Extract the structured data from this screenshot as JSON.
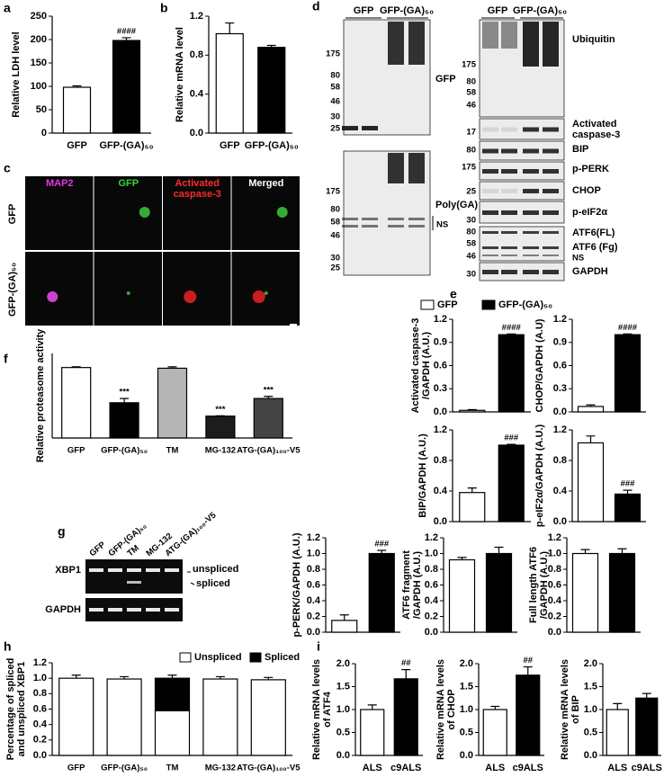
{
  "chart_data": [
    {
      "type": "bar",
      "ylabel": [
        "Relative LDH level"
      ],
      "categories": [
        "GFP",
        "GFP-(GA)₅₀"
      ],
      "values": [
        98,
        198
      ],
      "errors": [
        3,
        6
      ],
      "colors": [
        "#ffffff",
        "#000000"
      ],
      "annotations": [
        null,
        "####"
      ],
      "ylim": [
        0,
        250
      ],
      "yticks": [
        0,
        50,
        100,
        150,
        200,
        250
      ]
    },
    {
      "type": "bar",
      "ylabel": [
        "Relative mRNA level"
      ],
      "categories": [
        "GFP",
        "GFP-(GA)₅₀"
      ],
      "values": [
        1.02,
        0.88
      ],
      "errors": [
        0.11,
        0.02
      ],
      "colors": [
        "#ffffff",
        "#000000"
      ],
      "ylim": [
        0,
        1.2
      ],
      "yticks": [
        {
          "value": 0,
          "label": "0.0"
        },
        0.4,
        0.8,
        1.2
      ]
    },
    {
      "type": "bar",
      "ylabel": [
        "Activated caspase-3",
        "/GAPDH (A.U.)"
      ],
      "categories": [
        null,
        null
      ],
      "values": [
        0.02,
        1.0
      ],
      "errors": [
        0.01,
        0.01
      ],
      "colors": [
        "#ffffff",
        "#000000"
      ],
      "annotations": [
        null,
        "####"
      ],
      "ylim": [
        0,
        1.2
      ],
      "yticks": [
        {
          "value": 0,
          "label": "0.0"
        },
        0.3,
        0.6,
        0.9,
        1.2
      ]
    },
    {
      "type": "bar",
      "ylabel": [
        "CHOP/GAPDH (A.U)"
      ],
      "categories": [
        null,
        null
      ],
      "values": [
        0.07,
        1.0
      ],
      "errors": [
        0.02,
        0.01
      ],
      "colors": [
        "#ffffff",
        "#000000"
      ],
      "annotations": [
        null,
        "####"
      ],
      "ylim": [
        0,
        1.2
      ],
      "yticks": [
        {
          "value": 0,
          "label": "0.0"
        },
        0.3,
        0.6,
        0.9,
        1.2
      ]
    },
    {
      "type": "bar",
      "ylabel": [
        "BIP/GAPDH (A.U.)"
      ],
      "categories": [
        null,
        null
      ],
      "values": [
        0.38,
        1.0
      ],
      "errors": [
        0.06,
        0.01
      ],
      "colors": [
        "#ffffff",
        "#000000"
      ],
      "annotations": [
        null,
        "###"
      ],
      "ylim": [
        0,
        1.2
      ],
      "yticks": [
        {
          "value": 0,
          "label": "0.0"
        },
        0.4,
        0.8,
        1.2
      ]
    },
    {
      "type": "bar",
      "ylabel": [
        "p-eIF2α/GAPDH (A.U.)"
      ],
      "categories": [
        null,
        null
      ],
      "values": [
        1.03,
        0.36
      ],
      "errors": [
        0.09,
        0.05
      ],
      "colors": [
        "#ffffff",
        "#000000"
      ],
      "annotations": [
        null,
        "###"
      ],
      "ylim": [
        0,
        1.2
      ],
      "yticks": [
        {
          "value": 0,
          "label": "0.0"
        },
        0.4,
        0.8,
        1.2
      ]
    },
    {
      "type": "bar",
      "ylabel": [
        "p-PERK/GAPDH (A.U.)"
      ],
      "categories": [
        null,
        null
      ],
      "values": [
        0.15,
        1.0
      ],
      "errors": [
        0.07,
        0.04
      ],
      "colors": [
        "#ffffff",
        "#000000"
      ],
      "annotations": [
        null,
        "###"
      ],
      "ylim": [
        0,
        1.2
      ],
      "yticks": [
        {
          "value": 0,
          "label": "0.0"
        },
        0.2,
        0.4,
        0.6,
        0.8,
        {
          "value": 1,
          "label": "1.0"
        },
        1.2
      ]
    },
    {
      "type": "bar",
      "ylabel": [
        "ATF6 fragment",
        "/GAPDH (A.U.)"
      ],
      "categories": [
        null,
        null
      ],
      "values": [
        0.92,
        1.0
      ],
      "errors": [
        0.03,
        0.08
      ],
      "colors": [
        "#ffffff",
        "#000000"
      ],
      "ylim": [
        0,
        1.2
      ],
      "yticks": [
        {
          "value": 0,
          "label": "0.0"
        },
        0.2,
        0.4,
        0.6,
        0.8,
        {
          "value": 1,
          "label": "1.0"
        },
        1.2
      ]
    },
    {
      "type": "bar",
      "ylabel": [
        "Full length ATF6",
        "/GAPDH (A.U.)"
      ],
      "categories": [
        null,
        null
      ],
      "values": [
        1.0,
        1.0
      ],
      "errors": [
        0.05,
        0.06
      ],
      "colors": [
        "#ffffff",
        "#000000"
      ],
      "ylim": [
        0,
        1.2
      ],
      "yticks": [
        {
          "value": 0,
          "label": "0.0"
        },
        0.2,
        0.4,
        0.6,
        0.8,
        {
          "value": 1,
          "label": "1.0"
        },
        1.2
      ]
    },
    {
      "type": "bar",
      "ylabel": [
        "Relative proteasome activity"
      ],
      "categories": [
        "GFP",
        "GFP-(GA)₅₀",
        "TM",
        "MG-132",
        "ATG-(GA)₁₀₀-V5"
      ],
      "values": [
        100,
        50,
        99,
        31,
        56
      ],
      "errors": [
        1,
        6,
        2,
        0.5,
        3
      ],
      "colors": [
        "#ffffff",
        "#000000",
        "#b5b5b5",
        "#1c1c1c",
        "#444444"
      ],
      "annotations": [
        null,
        "***",
        null,
        "***",
        "***"
      ],
      "ylim": [
        0,
        120
      ]
    },
    {
      "type": "stacked_bar",
      "ylabel": [
        "Percentage of spliced",
        "and unspliced XBP1"
      ],
      "categories": [
        "GFP",
        "GFP-(GA)₅₀",
        "TM",
        "MG-132",
        "ATG-(GA)₁₀₀-V5"
      ],
      "series": [
        {
          "name": "Unspliced",
          "color": "#ffffff",
          "values": [
            1.0,
            0.99,
            0.58,
            0.99,
            0.98
          ]
        },
        {
          "name": "Spliced",
          "color": "#000000",
          "values": [
            0,
            0,
            0.42,
            0,
            0
          ]
        }
      ],
      "errors": [
        0.04,
        0.03,
        0.04,
        0.03,
        0.03
      ],
      "ylim": [
        0,
        1.2
      ],
      "yticks": [
        {
          "value": 0,
          "label": "0.0"
        },
        0.2,
        0.4,
        0.6,
        0.8,
        {
          "value": 1,
          "label": "1.0"
        },
        1.2
      ]
    },
    {
      "type": "bar",
      "ylabel": [
        "Relative mRNA levels",
        "of ATF4"
      ],
      "categories": [
        "ALS",
        "c9ALS"
      ],
      "values": [
        1.0,
        1.67
      ],
      "errors": [
        0.1,
        0.2
      ],
      "colors": [
        "#ffffff",
        "#000000"
      ],
      "annotations": [
        null,
        "##"
      ],
      "ylim": [
        0,
        2
      ],
      "yticks": [
        {
          "value": 0,
          "label": "0.0"
        },
        0.5,
        {
          "value": 1,
          "label": "1.0"
        },
        1.5,
        {
          "value": 2,
          "label": "2.0"
        }
      ]
    },
    {
      "type": "bar",
      "ylabel": [
        "Relative mRNA levels",
        "of CHOP"
      ],
      "categories": [
        "ALS",
        "c9ALS"
      ],
      "values": [
        1.0,
        1.75
      ],
      "errors": [
        0.07,
        0.18
      ],
      "colors": [
        "#ffffff",
        "#000000"
      ],
      "annotations": [
        null,
        "##"
      ],
      "ylim": [
        0,
        2
      ],
      "yticks": [
        {
          "value": 0,
          "label": "0.0"
        },
        0.5,
        {
          "value": 1,
          "label": "1.0"
        },
        1.5,
        {
          "value": 2,
          "label": "2.0"
        }
      ]
    },
    {
      "type": "bar",
      "ylabel": [
        "Relative mRNA levels",
        "of BIP"
      ],
      "categories": [
        "ALS",
        "c9ALS"
      ],
      "values": [
        1.0,
        1.25
      ],
      "errors": [
        0.13,
        0.1
      ],
      "colors": [
        "#ffffff",
        "#000000"
      ],
      "ylim": [
        0,
        2
      ],
      "yticks": [
        {
          "value": 0,
          "label": "0.0"
        },
        0.5,
        {
          "value": 1,
          "label": "1.0"
        },
        1.5,
        {
          "value": 2,
          "label": "2.0"
        }
      ]
    }
  ],
  "panel_labels": [
    "a",
    "b",
    "c",
    "d",
    "e",
    "f",
    "g",
    "h",
    "i"
  ],
  "legend_e": [
    {
      "name": "GFP",
      "color": "#ffffff"
    },
    {
      "name": "GFP-(GA)₅₀",
      "color": "#000000"
    }
  ],
  "micrographs": {
    "columns": [
      {
        "text": [
          "MAP2"
        ],
        "color": "#e632e6"
      },
      {
        "text": [
          "GFP"
        ],
        "color": "#3cd23c"
      },
      {
        "text": [
          "Activated",
          "caspase-3"
        ],
        "color": "#ff2a2a"
      },
      {
        "text": [
          "Merged"
        ],
        "color": "#ffffff"
      }
    ],
    "rows": [
      "GFP",
      "GFP-(GA)₅₀"
    ]
  },
  "blot_d_left": {
    "lanes": [
      "GFP",
      "GFP-(GA)₅₀"
    ],
    "top_markers": [
      175,
      80,
      58,
      46,
      30,
      25
    ],
    "top_label": "GFP",
    "bottom_markers": [
      175,
      80,
      58,
      46,
      30,
      25
    ],
    "bottom_label": "Poly(GA)",
    "ns": "NS"
  },
  "blot_d_right": {
    "lanes": [
      "GFP",
      "GFP-(GA)₅₀"
    ],
    "strips": [
      {
        "label": [
          "Ubiquitin"
        ],
        "markers": [
          175,
          80,
          58,
          46
        ]
      },
      {
        "label": [
          "Activated",
          "caspase-3"
        ],
        "markers": [
          17
        ]
      },
      {
        "label": [
          "BIP"
        ],
        "markers": [
          80
        ]
      },
      {
        "label": [
          "p-PERK"
        ],
        "markers": [
          175
        ]
      },
      {
        "label": [
          "CHOP"
        ],
        "markers": [
          25
        ]
      },
      {
        "label": [
          "p-eIF2α"
        ],
        "markers": [
          30
        ]
      },
      {
        "label": [
          "ATF6(FL)",
          "ATF6 (Fg)",
          "NS"
        ],
        "markers": [
          80,
          58,
          46
        ]
      },
      {
        "label": [
          "GAPDH"
        ],
        "markers": [
          30
        ]
      }
    ]
  },
  "gel_g": {
    "lanes": [
      "GFP",
      "GFP-(GA)₅₀",
      "TM",
      "MG-132",
      "ATG-(GA)₁₀₀-V5"
    ],
    "rows": [
      "XBP1",
      "GAPDH"
    ],
    "bands": [
      "unspliced",
      "spliced"
    ]
  }
}
